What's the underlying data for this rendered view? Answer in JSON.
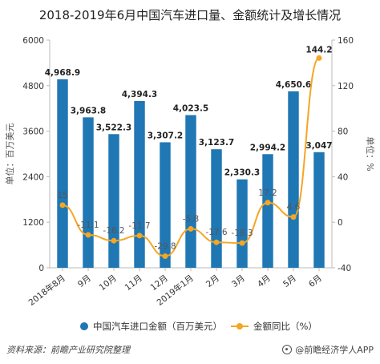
{
  "title": "2018-2019年6月中国汽车进口量、金额统计及增长情况",
  "chart_data": {
    "type": "bar",
    "categories": [
      "2018年8月",
      "9月",
      "10月",
      "11月",
      "12月",
      "2019年1月",
      "2月",
      "3月",
      "4月",
      "5月",
      "6月"
    ],
    "series": [
      {
        "name": "中国汽车进口金额（百万美元）",
        "type": "bar",
        "axis": "left",
        "color": "#1f77b4",
        "values": [
          4968.9,
          3963.8,
          3522.3,
          4394.3,
          3307.2,
          4023.5,
          3123.7,
          2330.3,
          2994.2,
          4650.6,
          3047
        ],
        "labels": [
          "4,968.9",
          "3,963.8",
          "3,522.3",
          "4,394.3",
          "3,307.2",
          "4,023.5",
          "3,123.7",
          "2,330.3",
          "2,994.2",
          "4,650.6",
          "3,047"
        ]
      },
      {
        "name": "金额同比（%）",
        "type": "line",
        "axis": "right",
        "color": "#f5a623",
        "values": [
          15,
          -11.1,
          -16.2,
          -11.7,
          -29.8,
          -5.8,
          -17.6,
          -18.3,
          17.2,
          4.6,
          144.2
        ],
        "labels": [
          "15",
          "-11.1",
          "-16.2",
          "-11.7",
          "-29.8",
          "-5.8",
          "-17.6",
          "-18.3",
          "17.2",
          "4.6",
          "144.2"
        ]
      }
    ],
    "ylabel": "单位：百万美元",
    "y2label": "单位：%",
    "ylim": [
      0,
      6000
    ],
    "yticks": [
      "0",
      "1200",
      "2400",
      "3600",
      "4800",
      "6000"
    ],
    "y2lim": [
      -40,
      160
    ],
    "y2ticks": [
      "-40",
      "0",
      "40",
      "80",
      "120",
      "160"
    ],
    "legend_position": "bottom",
    "grid": false
  },
  "legend": {
    "bar": "中国汽车进口金额（百万美元）",
    "line": "金额同比（%）"
  },
  "footer": {
    "source": "资料来源：前瞻产业研究院整理",
    "brand": "@前瞻经济学人APP"
  }
}
